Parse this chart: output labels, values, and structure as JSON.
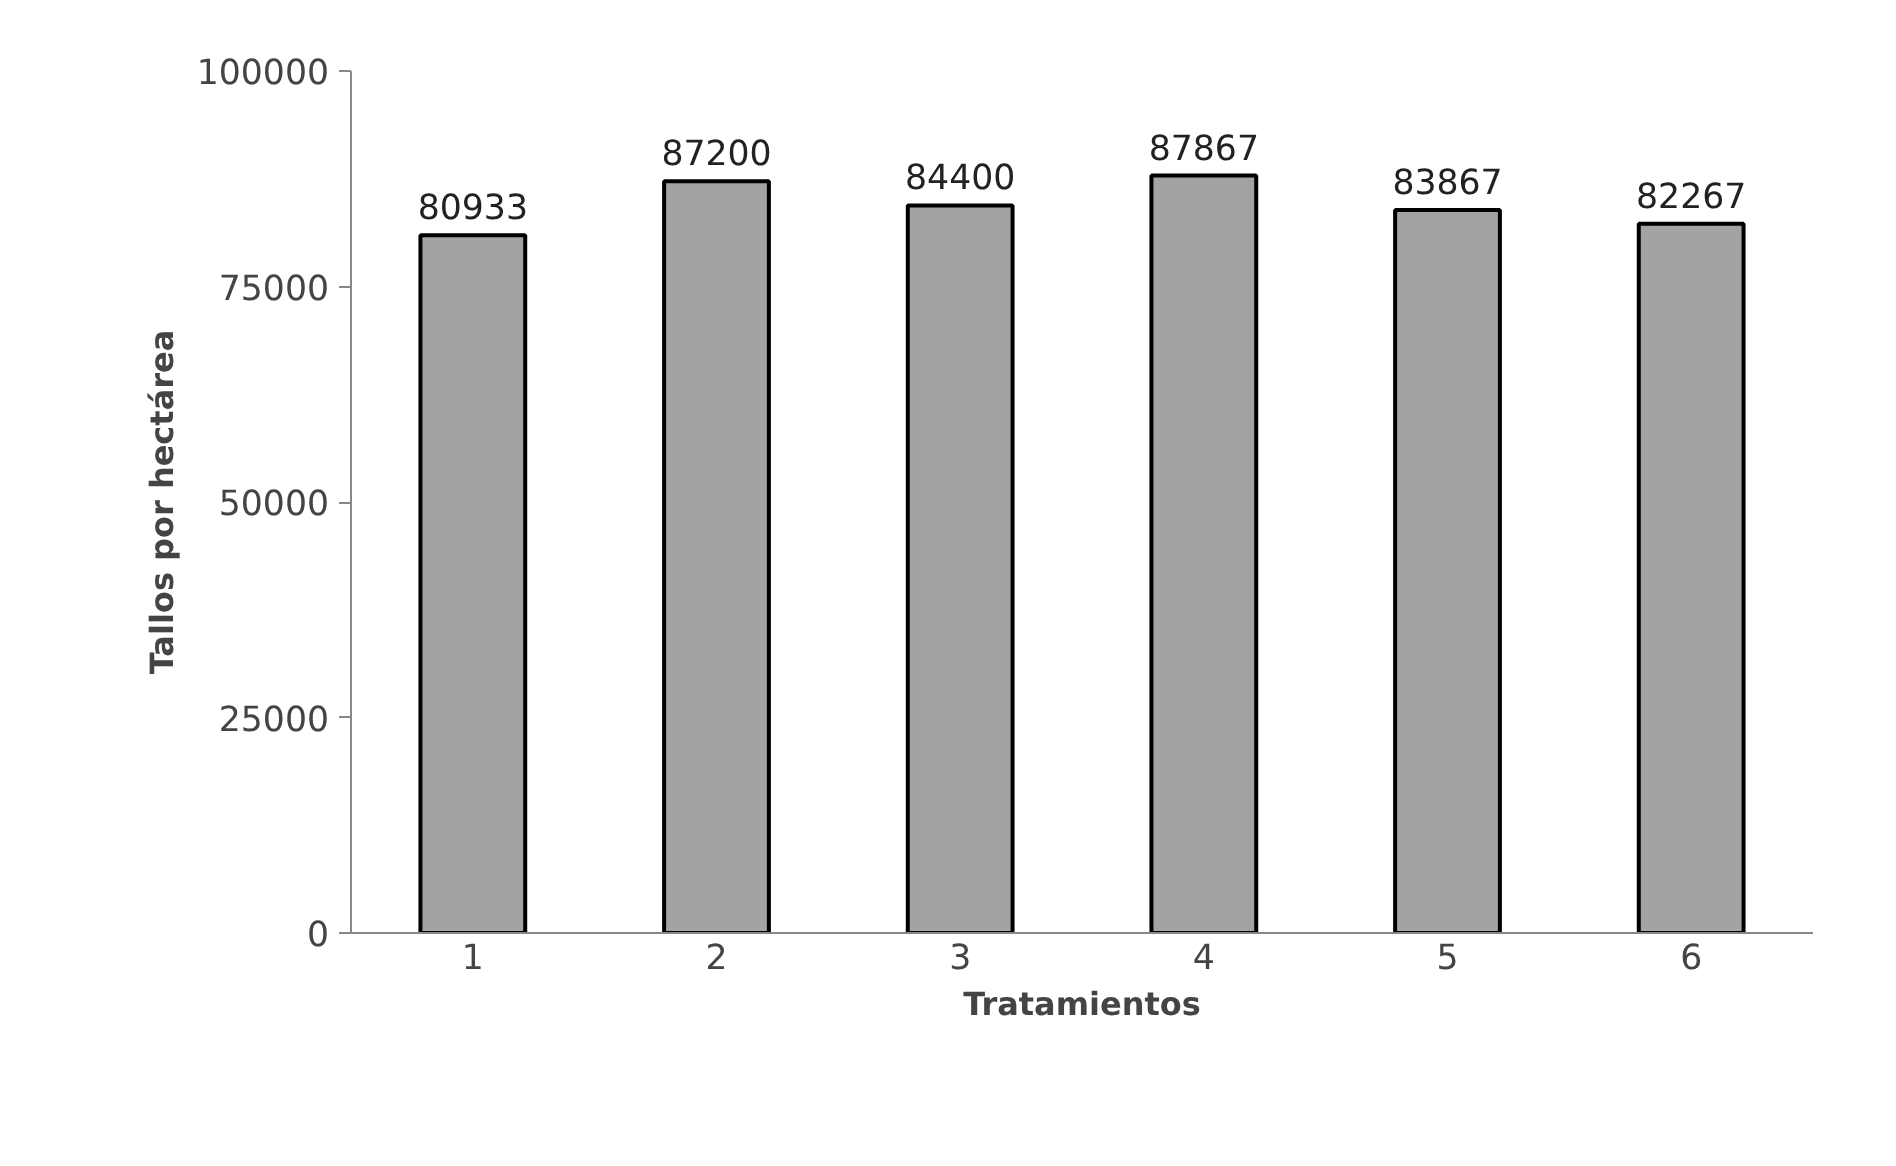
{
  "chart_data": {
    "type": "bar",
    "xlabel": "Tratamientos",
    "ylabel": "Tallos por hectárea",
    "categories": [
      "1",
      "2",
      "3",
      "4",
      "5",
      "6"
    ],
    "values": [
      80933,
      87200,
      84400,
      87867,
      83867,
      82267
    ],
    "color": "#a3a3a3",
    "data_labels": true,
    "grid": false,
    "ylim": [
      0,
      100000
    ],
    "yticks": [
      0,
      25000,
      50000,
      75000,
      100000
    ]
  }
}
